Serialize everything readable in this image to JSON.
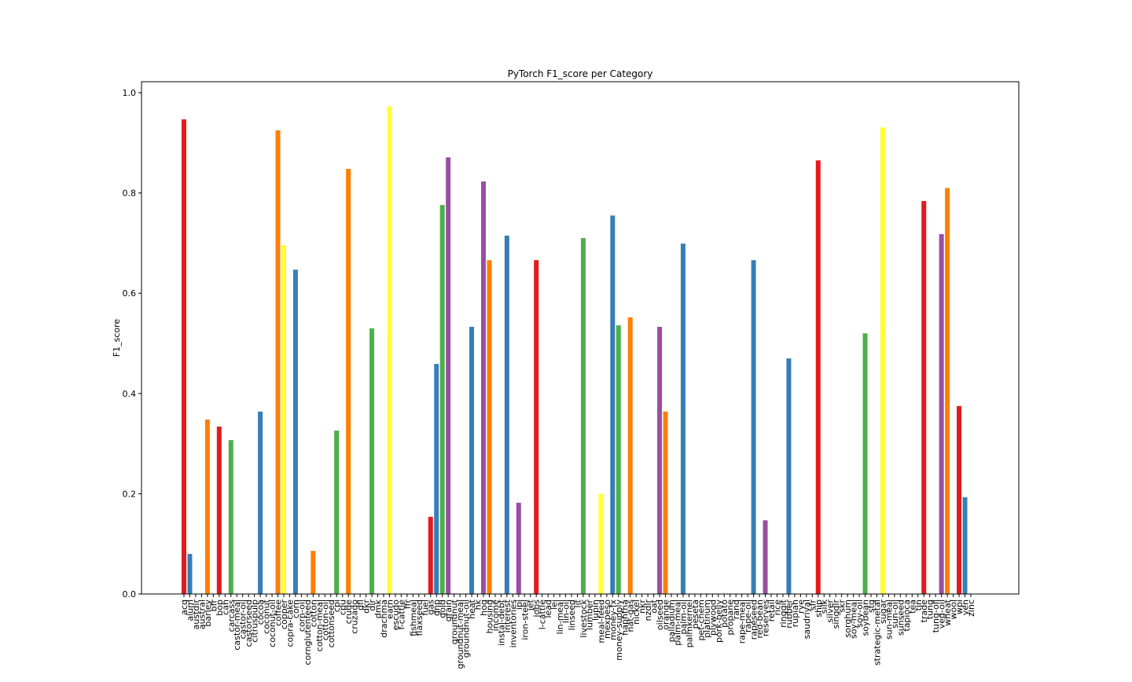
{
  "chart_data": {
    "type": "bar",
    "title": "PyTorch F1_score per Category",
    "y_label": "F1_score",
    "categories": [
      "acq",
      "alum",
      "austdlr",
      "austral",
      "barley",
      "bfr",
      "bop",
      "can",
      "carcass",
      "castor-meal",
      "castor-oil",
      "castorseed",
      "citruspulp",
      "cocoa",
      "coconut",
      "coconut-oil",
      "coffee",
      "copper",
      "copra-cake",
      "corn",
      "corn-oil",
      "cornglutenfeed",
      "cotton",
      "cotton-meal",
      "cotton-oil",
      "cottonseed",
      "cpi",
      "cpu",
      "crude",
      "cruzado",
      "dfl",
      "dkr",
      "dlr",
      "dmk",
      "drachma",
      "earn",
      "escudo",
      "f-cattle",
      "ffr",
      "fishmeal",
      "flaxseed",
      "fuel",
      "gas",
      "gnp",
      "gold",
      "grain",
      "groundnut",
      "groundnut-meal",
      "groundnut-oil",
      "heat",
      "hk",
      "hog",
      "housing",
      "income",
      "instal-debt",
      "interest",
      "inventories",
      "ipi",
      "iron-steel",
      "jet",
      "jobs",
      "l-cattle",
      "lead",
      "lei",
      "lin-meal",
      "lin-oil",
      "linseed",
      "lit",
      "livestock",
      "lumber",
      "lupin",
      "meal-feed",
      "mexpeso",
      "money-fx",
      "money-supply",
      "naphtha",
      "nat-gas",
      "nickel",
      "nkr",
      "nzdlr",
      "oat",
      "oilseed",
      "orange",
      "palladium",
      "palm-meal",
      "palm-oil",
      "palmkernel",
      "peseta",
      "pet-chem",
      "platinum",
      "plywood",
      "pork-belly",
      "potato",
      "propane",
      "rand",
      "rape-meal",
      "rape-oil",
      "rapeseed",
      "red-bean",
      "reserves",
      "retail",
      "rice",
      "ringgit",
      "rubber",
      "rupiah",
      "rye",
      "saudriyal",
      "sfr",
      "ship",
      "silk",
      "silver",
      "singdlr",
      "skr",
      "sorghum",
      "soy-meal",
      "soy-oil",
      "soybean",
      "stg",
      "strategic-metal",
      "sugar",
      "sun-meal",
      "sun-oil",
      "sunseed",
      "tapioca",
      "tea",
      "tin",
      "trade",
      "tung",
      "tung-oil",
      "veg-oil",
      "wheat",
      "wool",
      "wpi",
      "yen",
      "zinc"
    ],
    "values": [
      0.947,
      0.08,
      0,
      0,
      0.348,
      0,
      0.334,
      0,
      0.307,
      0,
      0,
      0,
      0,
      0.364,
      0,
      0,
      0.925,
      0.696,
      0,
      0.647,
      0,
      0,
      0.086,
      0,
      0,
      0,
      0.326,
      0,
      0.848,
      0,
      0,
      0,
      0.53,
      0,
      0,
      0.973,
      0,
      0,
      0,
      0,
      0,
      0,
      0.154,
      0.459,
      0.776,
      0.871,
      0,
      0,
      0,
      0.533,
      0,
      0.823,
      0.666,
      0,
      0,
      0.715,
      0,
      0.182,
      0,
      0,
      0.666,
      0,
      0,
      0,
      0,
      0,
      0,
      0,
      0.71,
      0,
      0,
      0.2,
      0,
      0.755,
      0.536,
      0,
      0.552,
      0,
      0,
      0,
      0,
      0.533,
      0.364,
      0,
      0,
      0.699,
      0,
      0,
      0,
      0,
      0,
      0,
      0,
      0,
      0,
      0,
      0,
      0.666,
      0,
      0.147,
      0,
      0,
      0,
      0.47,
      0,
      0,
      0,
      0,
      0.865,
      0,
      0,
      0,
      0,
      0,
      0,
      0,
      0.52,
      0,
      0,
      0.931,
      0,
      0,
      0,
      0,
      0,
      0,
      0.784,
      0,
      0,
      0.718,
      0.81,
      0,
      0.375,
      0.193,
      0
    ],
    "colors": [
      "#e41a1c",
      "#377eb8",
      "#4daf4a",
      "#984ea3",
      "#ff7f00",
      "#ffff33"
    ],
    "ylim": [
      0,
      1.022
    ],
    "yticks": [
      {
        "value": 0,
        "label": "0.0"
      },
      0.2,
      0.4,
      0.6,
      0.8,
      {
        "value": 1,
        "label": "1.0"
      }
    ]
  }
}
